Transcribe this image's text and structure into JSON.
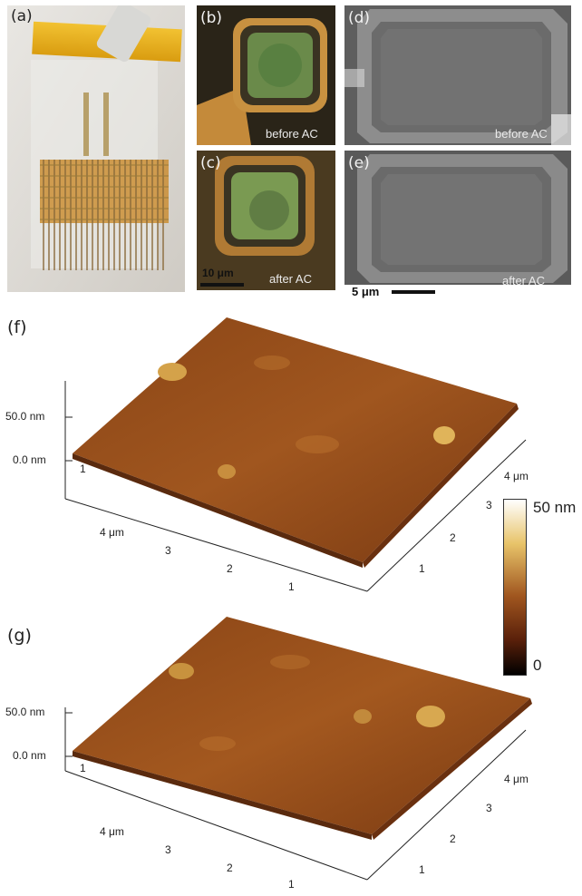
{
  "panels": {
    "a": {
      "label": "(a)"
    },
    "b": {
      "label": "(b)",
      "caption": "before AC"
    },
    "c": {
      "label": "(c)",
      "caption": "after AC",
      "scale": "10 μm"
    },
    "d": {
      "label": "(d)",
      "caption": "before AC"
    },
    "e": {
      "label": "(e)",
      "caption": "after AC",
      "scale": "5 μm"
    },
    "f": {
      "label": "(f)",
      "z_top": "50.0 nm",
      "z_zero": "0.0 nm",
      "axis_left": [
        "1",
        "4 μm",
        "3",
        "2",
        "1"
      ],
      "axis_right": [
        "4 μm",
        "3",
        "2",
        "1"
      ]
    },
    "g": {
      "label": "(g)",
      "z_top": "50.0 nm",
      "z_zero": "0.0 nm",
      "axis_left": [
        "1",
        "4 μm",
        "3",
        "2",
        "1"
      ],
      "axis_right": [
        "4 μm",
        "3",
        "2",
        "1"
      ]
    }
  },
  "colorbar": {
    "max_label": "50 nm",
    "min_label": "0"
  },
  "colors": {
    "afm_dark": "#5a2a0e",
    "afm_mid": "#9a4f1c",
    "afm_light": "#e0b45a",
    "sem_gray": "#6f6f6f",
    "optical_gold": "#c48a3a",
    "optical_green": "#6a8a4a"
  }
}
